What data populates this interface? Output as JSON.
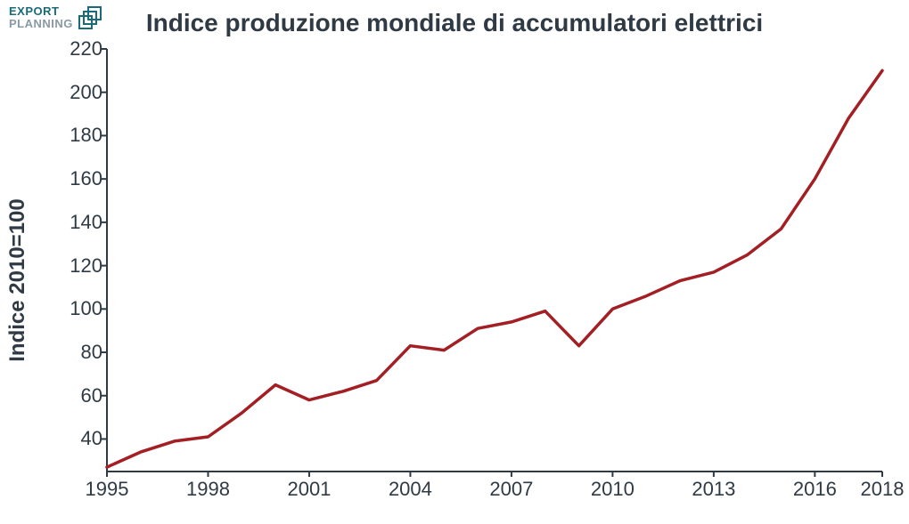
{
  "logo": {
    "line1": "EXPORT",
    "line2": "PLANNING",
    "text_color_1": "#1a6b7a",
    "text_color_2": "#8a9aa5",
    "icon_stroke": "#1a6b7a"
  },
  "chart": {
    "type": "line",
    "title": "Indice produzione mondiale di accumulatori elettrici",
    "title_fontsize": 28,
    "title_color": "#2f3a44",
    "ylabel": "Indice 2010=100",
    "ylabel_fontsize": 24,
    "tick_fontsize": 22,
    "tick_color": "#2f3a44",
    "background_color": "#ffffff",
    "axis_color": "#2f3a44",
    "axis_width": 2,
    "line_color": "#a31f24",
    "line_width": 3.5,
    "xlim": [
      1995,
      2018
    ],
    "ylim": [
      25,
      220
    ],
    "xticks": [
      1995,
      1998,
      2001,
      2004,
      2007,
      2010,
      2013,
      2016,
      2018
    ],
    "yticks": [
      40,
      60,
      80,
      100,
      120,
      140,
      160,
      180,
      200,
      220
    ],
    "years": [
      1995,
      1996,
      1997,
      1998,
      1999,
      2000,
      2001,
      2002,
      2003,
      2004,
      2005,
      2006,
      2007,
      2008,
      2009,
      2010,
      2011,
      2012,
      2013,
      2014,
      2015,
      2016,
      2017,
      2018
    ],
    "values": [
      27,
      34,
      39,
      41,
      52,
      65,
      58,
      62,
      67,
      83,
      81,
      91,
      94,
      99,
      83,
      100,
      106,
      113,
      117,
      125,
      137,
      160,
      188,
      210
    ]
  }
}
